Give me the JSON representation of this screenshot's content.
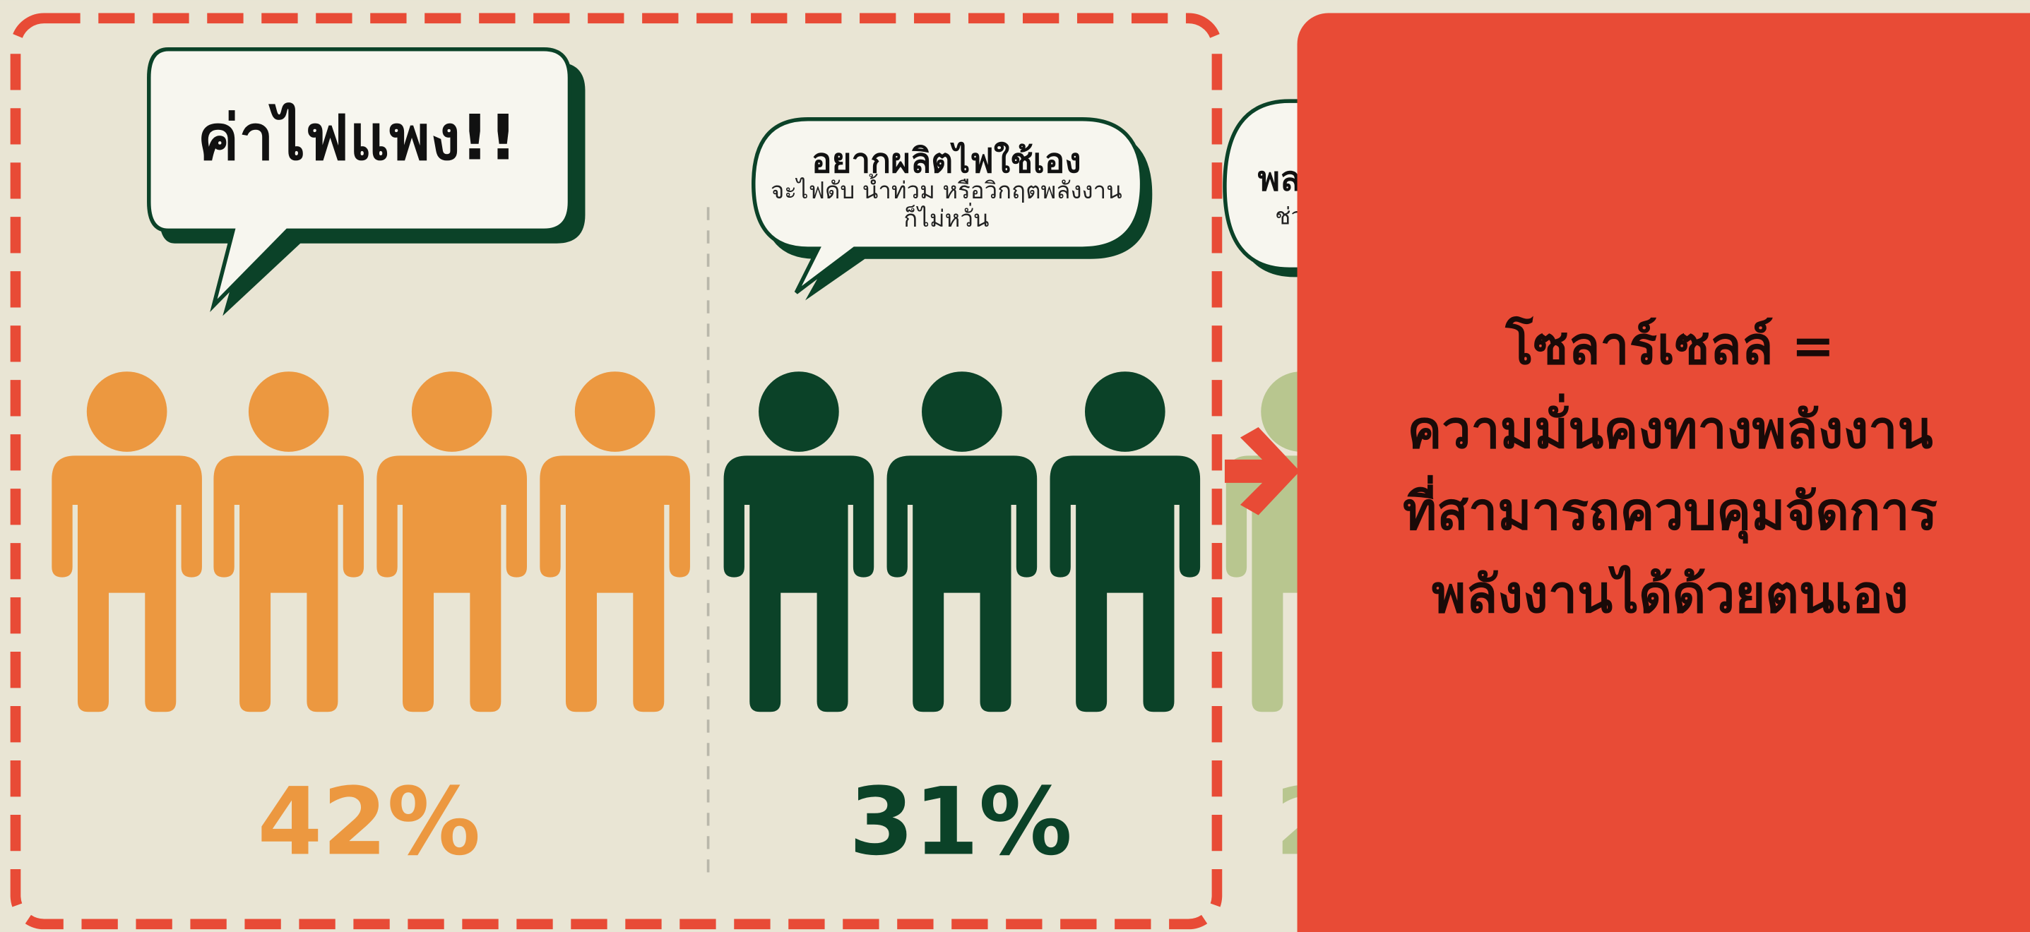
{
  "bubbles": [
    {
      "title": "ค่าไฟแพง!!"
    },
    {
      "title": "อยากผลิตไฟใช้เอง",
      "lines": [
        "จะไฟดับ น้ำท่วม หรือวิกฤตพลังงาน",
        "ก็ไม่หวั่น"
      ]
    },
    {
      "title": "พล",
      "lines": [
        "ช่ว"
      ]
    }
  ],
  "stats": [
    "42%",
    "31%",
    "2"
  ],
  "overlay": {
    "lines": [
      "โซลาร์เซลล์ =",
      "ความมั่นคงทางพลังงาน",
      "ที่สามารถควบคุมจัดการ",
      "พลังงานได้ด้วยตนเอง"
    ]
  }
}
